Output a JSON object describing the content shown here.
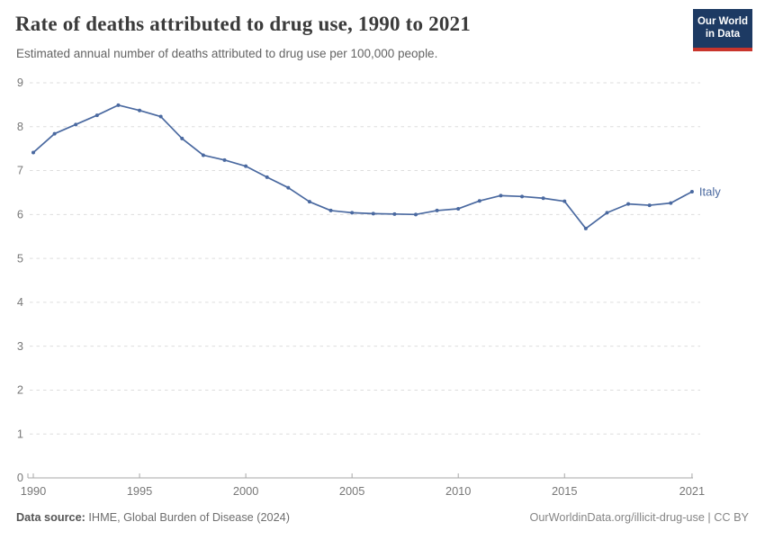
{
  "header": {
    "title": "Rate of deaths attributed to drug use, 1990 to 2021",
    "subtitle": "Estimated annual number of deaths attributed to drug use per 100,000 people.",
    "logo_line1": "Our World",
    "logo_line2": "in Data"
  },
  "footer": {
    "source_label": "Data source:",
    "source_text": " IHME, Global Burden of Disease (2024)",
    "link_text": "OurWorldinData.org/illicit-drug-use | CC BY"
  },
  "colors": {
    "line": "#4a69a0",
    "grid": "#dddddd",
    "axis": "#a7a7a7",
    "tick_label": "#777777",
    "logo_bg": "#1d3a63",
    "logo_red": "#c9352c",
    "title": "#3b3b3b",
    "subtitle": "#636363"
  },
  "chart_data": {
    "type": "line",
    "title": "Rate of deaths attributed to drug use, 1990 to 2021",
    "subtitle": "Estimated annual number of deaths attributed to drug use per 100,000 people.",
    "xlabel": "",
    "ylabel": "",
    "grid": "horizontal-dashed",
    "legend_position": "end-of-line-label",
    "xlim": [
      1990,
      2021
    ],
    "ylim": [
      0,
      9
    ],
    "yticks": [
      0,
      1,
      2,
      3,
      4,
      5,
      6,
      7,
      8,
      9
    ],
    "xticks": [
      1990,
      1995,
      2000,
      2005,
      2010,
      2015,
      2021
    ],
    "x": [
      1990,
      1991,
      1992,
      1993,
      1994,
      1995,
      1996,
      1997,
      1998,
      1999,
      2000,
      2001,
      2002,
      2003,
      2004,
      2005,
      2006,
      2007,
      2008,
      2009,
      2010,
      2011,
      2012,
      2013,
      2014,
      2015,
      2016,
      2017,
      2018,
      2019,
      2020,
      2021
    ],
    "series": [
      {
        "name": "Italy",
        "values": [
          7.41,
          7.84,
          8.05,
          8.26,
          8.49,
          8.37,
          8.23,
          7.73,
          7.35,
          7.24,
          7.1,
          6.85,
          6.61,
          6.29,
          6.09,
          6.04,
          6.02,
          6.01,
          6.0,
          6.09,
          6.13,
          6.31,
          6.43,
          6.41,
          6.37,
          6.3,
          5.68,
          6.04,
          6.24,
          6.21,
          6.26,
          6.52
        ]
      }
    ]
  }
}
